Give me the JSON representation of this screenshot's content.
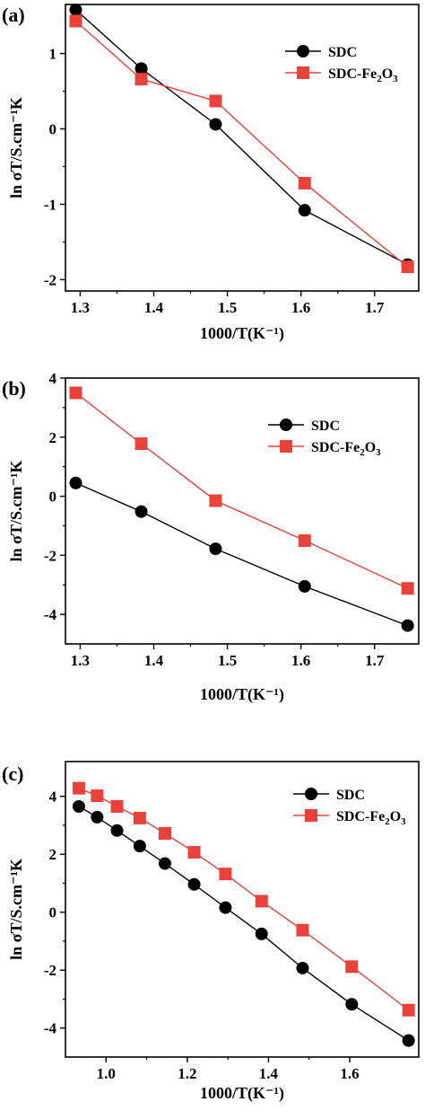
{
  "colors": {
    "sdc": "#000000",
    "sdc_fe2o3": "#e8423a",
    "axis": "#000000"
  },
  "chart_data": [
    {
      "type": "line",
      "panel_label": "(a)",
      "xlabel": "1000/T(K⁻¹)",
      "ylabel": "ln σT/S.cm⁻¹K",
      "xlim": [
        1.28,
        1.76
      ],
      "ylim": [
        -2.15,
        1.65
      ],
      "xticks": [
        "1.3",
        "1.4",
        "1.5",
        "1.6",
        "1.7"
      ],
      "yticks": [
        "-2",
        "-1",
        "0",
        "1"
      ],
      "legend_position": "top-right",
      "series": [
        {
          "name": "SDC",
          "marker": "circle",
          "color": "#000000",
          "x": [
            1.294,
            1.383,
            1.484,
            1.605,
            1.745
          ],
          "y": [
            1.58,
            0.8,
            0.06,
            -1.08,
            -1.8
          ]
        },
        {
          "name": "SDC-Fe2O3",
          "marker": "square",
          "color": "#e8423a",
          "x": [
            1.294,
            1.383,
            1.484,
            1.605,
            1.745
          ],
          "y": [
            1.43,
            0.66,
            0.37,
            -0.72,
            -1.83
          ]
        }
      ]
    },
    {
      "type": "line",
      "panel_label": "(b)",
      "xlabel": "1000/T(K⁻¹)",
      "ylabel": "ln σT/S.cm⁻¹K",
      "xlim": [
        1.28,
        1.76
      ],
      "ylim": [
        -5.0,
        4.0
      ],
      "xticks": [
        "1.3",
        "1.4",
        "1.5",
        "1.6",
        "1.7"
      ],
      "yticks": [
        "-4",
        "-2",
        "0",
        "2",
        "4"
      ],
      "legend_position": "top-right",
      "series": [
        {
          "name": "SDC",
          "marker": "circle",
          "color": "#000000",
          "x": [
            1.294,
            1.383,
            1.484,
            1.605,
            1.745
          ],
          "y": [
            0.45,
            -0.52,
            -1.78,
            -3.05,
            -4.38
          ]
        },
        {
          "name": "SDC-Fe2O3",
          "marker": "square",
          "color": "#e8423a",
          "x": [
            1.294,
            1.383,
            1.484,
            1.605,
            1.745
          ],
          "y": [
            3.5,
            1.78,
            -0.15,
            -1.5,
            -3.12
          ]
        }
      ]
    },
    {
      "type": "line",
      "panel_label": "(c)",
      "xlabel": "1000/T(K⁻¹)",
      "ylabel": "ln σT/S.cm⁻¹K",
      "xlim": [
        0.9,
        1.77
      ],
      "ylim": [
        -5.0,
        5.2
      ],
      "xticks": [
        "1.0",
        "1.2",
        "1.4",
        "1.6"
      ],
      "yticks": [
        "-4",
        "-2",
        "0",
        "2",
        "4"
      ],
      "legend_position": "top-right",
      "series": [
        {
          "name": "SDC",
          "marker": "circle",
          "color": "#000000",
          "x": [
            0.933,
            0.978,
            1.027,
            1.083,
            1.145,
            1.217,
            1.294,
            1.383,
            1.484,
            1.605,
            1.745
          ],
          "y": [
            3.65,
            3.28,
            2.82,
            2.28,
            1.68,
            0.96,
            0.16,
            -0.75,
            -1.93,
            -3.18,
            -4.43
          ]
        },
        {
          "name": "SDC-Fe2O3",
          "marker": "square",
          "color": "#e8423a",
          "x": [
            0.933,
            0.978,
            1.027,
            1.083,
            1.145,
            1.217,
            1.294,
            1.383,
            1.484,
            1.605,
            1.745
          ],
          "y": [
            4.28,
            4.02,
            3.65,
            3.25,
            2.72,
            2.07,
            1.32,
            0.38,
            -0.62,
            -1.88,
            -3.38
          ]
        }
      ]
    }
  ]
}
